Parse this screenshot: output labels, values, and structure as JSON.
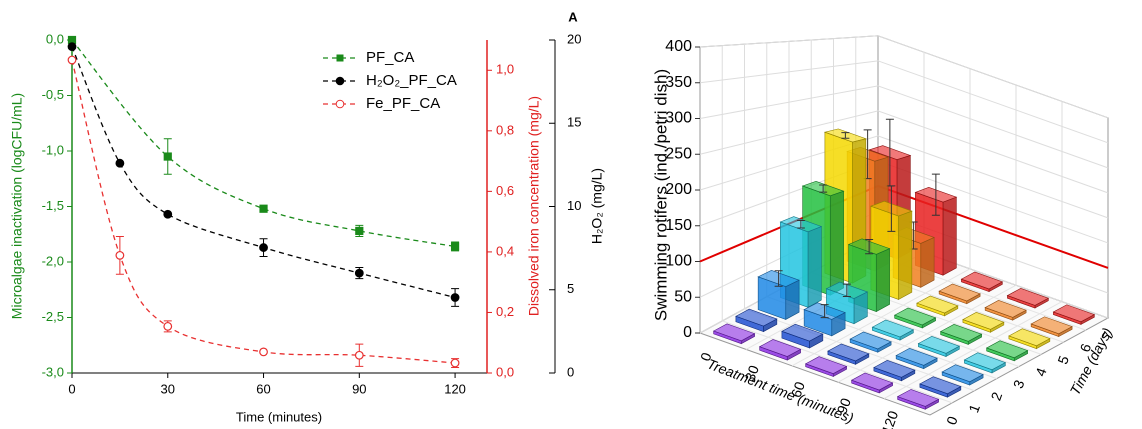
{
  "chart_data": [
    {
      "type": "line",
      "annotation": "A",
      "x_label": "Time (minutes)",
      "y_label": "Microalgae inactivation (logCFU/mL)",
      "y2_label": "Dissolved iron concentration (mg/L)",
      "y3_label": "H₂O₂ (mg/L)",
      "xlim": [
        0,
        130
      ],
      "xticks": [
        0,
        30,
        60,
        90,
        120
      ],
      "ylim": [
        -3,
        0
      ],
      "yticks": [
        {
          "value": -3,
          "label": "-3,0"
        },
        {
          "value": -2.5,
          "label": "-2,5"
        },
        {
          "value": -2,
          "label": "-2,0"
        },
        {
          "value": -1.5,
          "label": "-1,5"
        },
        {
          "value": -1,
          "label": "-1,0"
        },
        {
          "value": -0.5,
          "label": "-0,5"
        },
        {
          "value": 0,
          "label": "0,0"
        }
      ],
      "y_color": "#1a8a1a",
      "y2lim": [
        0,
        1.1
      ],
      "y2ticks": [
        {
          "value": 0,
          "label": "0,0"
        },
        {
          "value": 0.2,
          "label": "0,2"
        },
        {
          "value": 0.4,
          "label": "0,4"
        },
        {
          "value": 0.6,
          "label": "0,6"
        },
        {
          "value": 0.8,
          "label": "0,8"
        },
        {
          "value": 1,
          "label": "1,0"
        }
      ],
      "y2_color": "#e02020",
      "y3lim": [
        0,
        20
      ],
      "y3ticks": [
        0,
        5,
        10,
        15,
        20
      ],
      "y3_color": "#000000",
      "series": [
        {
          "name": "PF_CA",
          "color": "#1a8a1a",
          "marker": "square",
          "x": [
            0,
            30,
            60,
            90,
            120
          ],
          "values": [
            0.0,
            -1.05,
            -1.52,
            -1.72,
            -1.86
          ],
          "errors": [
            null,
            0.16,
            null,
            0.05,
            0.04
          ]
        },
        {
          "name": "H₂O₂_PF_CA",
          "color": "#000000",
          "marker": "circle",
          "x": [
            0,
            15,
            30,
            60,
            90,
            120
          ],
          "values": [
            -0.06,
            -1.11,
            -1.57,
            -1.87,
            -2.1,
            -2.32
          ],
          "errors": [
            null,
            null,
            null,
            0.08,
            0.05,
            0.08
          ]
        },
        {
          "name": "Fe_PF_CA",
          "color": "#e83030",
          "marker": "open-circle",
          "x": [
            0,
            15,
            30,
            60,
            90,
            120
          ],
          "values": [
            -0.18,
            -1.94,
            -2.58,
            -2.81,
            -2.84,
            -2.91
          ],
          "errors": [
            null,
            0.17,
            0.05,
            null,
            0.1,
            0.04
          ]
        }
      ]
    },
    {
      "type": "bar3d",
      "z_label": "Swimming rotifers (ind./petri dish)",
      "x_label": "Treatment time (minutes)",
      "y_label": "Time (days)",
      "x_categories": [
        0,
        30,
        60,
        90,
        120
      ],
      "y_categories": [
        0,
        1,
        2,
        3,
        4,
        5,
        6,
        7
      ],
      "zlim": [
        0,
        400
      ],
      "zticks": [
        0,
        50,
        100,
        150,
        200,
        250,
        300,
        350,
        400
      ],
      "colors": [
        "#8a2be2",
        "#1f4fd0",
        "#1e88e5",
        "#22c4e0",
        "#22c040",
        "#f5d800",
        "#f08020",
        "#e82020"
      ],
      "reference_line": {
        "value": 100,
        "color": "#e00000"
      },
      "values": [
        [
          4,
          8,
          50,
          120,
          165,
          245,
          200,
          190
        ],
        [
          5,
          10,
          25,
          40,
          95,
          145,
          80,
          140
        ],
        [
          4,
          5,
          5,
          5,
          5,
          5,
          5,
          5
        ],
        [
          4,
          5,
          5,
          5,
          5,
          5,
          5,
          5
        ],
        [
          4,
          5,
          5,
          5,
          5,
          5,
          5,
          5
        ]
      ],
      "errors": [
        [
          null,
          null,
          12,
          6,
          6,
          5,
          45,
          65
        ],
        [
          null,
          null,
          10,
          10,
          12,
          40,
          25,
          40
        ],
        [
          null,
          null,
          null,
          null,
          null,
          null,
          null,
          null
        ],
        [
          null,
          null,
          null,
          null,
          null,
          null,
          null,
          null
        ],
        [
          null,
          null,
          null,
          null,
          null,
          null,
          null,
          null
        ]
      ]
    }
  ]
}
